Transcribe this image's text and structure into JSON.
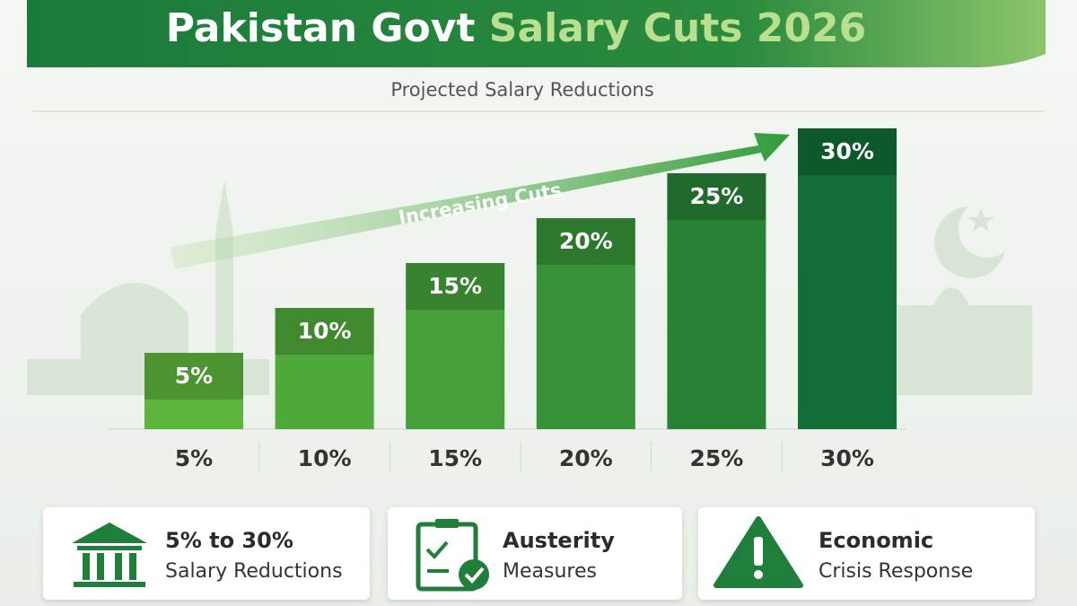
{
  "chart_data": {
    "type": "bar",
    "title": {
      "main": "Pakistan Govt",
      "highlight": "Salary Cuts 2026"
    },
    "subtitle": "Projected Salary Reductions",
    "annotation": "Increasing Cuts",
    "categories": [
      "5%",
      "10%",
      "15%",
      "20%",
      "25%",
      "30%"
    ],
    "values": [
      5,
      10,
      15,
      20,
      25,
      30
    ],
    "value_labels": [
      "5%",
      "10%",
      "15%",
      "20%",
      "25%",
      "30%"
    ],
    "colors": [
      "#5db53c",
      "#4fa83a",
      "#45a03a",
      "#379338",
      "#278236",
      "#126d36"
    ]
  },
  "cards": [
    {
      "lines": [
        "5% to 30%",
        "Salary Reductions"
      ]
    },
    {
      "lines": [
        "Austerity",
        "Measures"
      ]
    },
    {
      "lines": [
        "Economic",
        "Crisis Response"
      ]
    }
  ]
}
